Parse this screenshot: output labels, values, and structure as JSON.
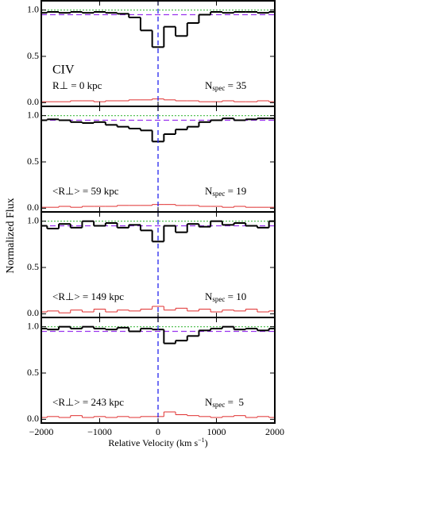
{
  "chart_data": [
    {
      "type": "step",
      "annotation": "CIV",
      "rlabel": "R⊥ = 0 kpc",
      "nlabel": {
        "main": "N",
        "sub": "spec",
        "rest": " = 35"
      },
      "ylabel": "Normalized Flux",
      "x": [
        -2000,
        -1800,
        -1600,
        -1400,
        -1200,
        -1000,
        -800,
        -600,
        -400,
        -200,
        0,
        200,
        400,
        600,
        800,
        1000,
        1200,
        1400,
        1600,
        1800,
        2000
      ],
      "series": [
        {
          "color": "#000000",
          "values": [
            0.97,
            0.98,
            0.97,
            0.98,
            0.97,
            0.98,
            0.97,
            0.96,
            0.92,
            0.78,
            0.6,
            0.82,
            0.72,
            0.86,
            0.95,
            0.98,
            0.97,
            0.98,
            0.98,
            0.97,
            0.98
          ]
        },
        {
          "color": "#e03030",
          "values": [
            0.01,
            0.01,
            0.01,
            0.02,
            0.02,
            0.01,
            0.02,
            0.02,
            0.03,
            0.03,
            0.04,
            0.03,
            0.02,
            0.02,
            0.01,
            0.01,
            0.02,
            0.01,
            0.01,
            0.02,
            0.01
          ]
        }
      ],
      "reference_lines": [
        {
          "y": 1.0,
          "color": "#44bb44",
          "style": "dotted"
        },
        {
          "y": 0.95,
          "color": "#9933ee",
          "style": "dashed"
        }
      ],
      "vline": {
        "x": 0,
        "color": "#2222ee"
      },
      "xlim": [
        -2000,
        2000
      ],
      "ylim": [
        -0.04,
        1.1
      ],
      "yticks": [
        {
          "value": 0,
          "label": "0.0"
        },
        {
          "value": 0.5,
          "label": "0.5"
        },
        {
          "value": 1,
          "label": "1.0"
        }
      ]
    },
    {
      "type": "step",
      "rlabel": "<R⊥> = 59 kpc",
      "nlabel": {
        "main": "N",
        "sub": "spec",
        "rest": " = 19"
      },
      "x": [
        -2000,
        -1800,
        -1600,
        -1400,
        -1200,
        -1000,
        -800,
        -600,
        -400,
        -200,
        0,
        200,
        400,
        600,
        800,
        1000,
        1200,
        1400,
        1600,
        1800,
        2000
      ],
      "series": [
        {
          "color": "#000000",
          "values": [
            0.95,
            0.96,
            0.95,
            0.93,
            0.92,
            0.93,
            0.9,
            0.88,
            0.86,
            0.84,
            0.72,
            0.8,
            0.85,
            0.88,
            0.93,
            0.95,
            0.97,
            0.95,
            0.96,
            0.97,
            0.97
          ]
        },
        {
          "color": "#e03030",
          "values": [
            0.01,
            0.01,
            0.02,
            0.01,
            0.02,
            0.02,
            0.02,
            0.03,
            0.03,
            0.03,
            0.04,
            0.04,
            0.03,
            0.03,
            0.02,
            0.02,
            0.01,
            0.02,
            0.01,
            0.01,
            0.01
          ]
        }
      ],
      "reference_lines": [
        {
          "y": 1.0,
          "color": "#44bb44",
          "style": "dotted"
        },
        {
          "y": 0.95,
          "color": "#9933ee",
          "style": "dashed"
        }
      ],
      "vline": {
        "x": 0,
        "color": "#2222ee"
      },
      "xlim": [
        -2000,
        2000
      ],
      "ylim": [
        -0.04,
        1.1
      ],
      "yticks": [
        {
          "value": 0,
          "label": "0.0"
        },
        {
          "value": 0.5,
          "label": "0.5"
        },
        {
          "value": 1,
          "label": "1.0"
        }
      ]
    },
    {
      "type": "step",
      "rlabel": "<R⊥> = 149 kpc",
      "nlabel": {
        "main": "N",
        "sub": "spec",
        "rest": " = 10"
      },
      "x": [
        -2000,
        -1800,
        -1600,
        -1400,
        -1200,
        -1000,
        -800,
        -600,
        -400,
        -200,
        0,
        200,
        400,
        600,
        800,
        1000,
        1200,
        1400,
        1600,
        1800,
        2000
      ],
      "series": [
        {
          "color": "#000000",
          "values": [
            0.95,
            0.92,
            0.97,
            0.93,
            1.0,
            0.95,
            0.98,
            0.93,
            0.96,
            0.9,
            0.78,
            0.95,
            0.88,
            0.97,
            0.94,
            1.0,
            0.96,
            0.98,
            0.95,
            0.93,
            1.0
          ]
        },
        {
          "color": "#e03030",
          "values": [
            0.02,
            0.03,
            0.01,
            0.04,
            0.02,
            0.05,
            0.02,
            0.04,
            0.03,
            0.05,
            0.08,
            0.04,
            0.06,
            0.03,
            0.05,
            0.02,
            0.04,
            0.03,
            0.05,
            0.02,
            0.03
          ]
        }
      ],
      "reference_lines": [
        {
          "y": 1.0,
          "color": "#44bb44",
          "style": "dotted"
        },
        {
          "y": 0.95,
          "color": "#9933ee",
          "style": "dashed"
        }
      ],
      "vline": {
        "x": 0,
        "color": "#2222ee"
      },
      "xlim": [
        -2000,
        2000
      ],
      "ylim": [
        -0.04,
        1.1
      ],
      "yticks": [
        {
          "value": 0,
          "label": "0.0"
        },
        {
          "value": 0.5,
          "label": "0.5"
        },
        {
          "value": 1,
          "label": "1.0"
        }
      ]
    },
    {
      "type": "step",
      "rlabel": "<R⊥> = 243 kpc",
      "nlabel": {
        "main": "N",
        "sub": "spec",
        "rest": " =  5"
      },
      "xlabel": {
        "text": "Relative Velocity (km s",
        "sup": "−1",
        "end": ")"
      },
      "x": [
        -2000,
        -1800,
        -1600,
        -1400,
        -1200,
        -1000,
        -800,
        -600,
        -400,
        -200,
        0,
        200,
        400,
        600,
        800,
        1000,
        1200,
        1400,
        1600,
        1800,
        2000
      ],
      "series": [
        {
          "color": "#000000",
          "values": [
            0.98,
            0.97,
            1.0,
            0.98,
            1.0,
            0.98,
            0.97,
            0.99,
            0.95,
            0.98,
            0.97,
            0.82,
            0.85,
            0.9,
            0.96,
            0.98,
            1.0,
            0.97,
            0.98,
            0.96,
            0.98
          ]
        },
        {
          "color": "#e03030",
          "values": [
            0.02,
            0.03,
            0.02,
            0.04,
            0.02,
            0.03,
            0.02,
            0.03,
            0.02,
            0.03,
            0.03,
            0.08,
            0.05,
            0.04,
            0.03,
            0.02,
            0.03,
            0.04,
            0.02,
            0.03,
            0.02
          ]
        }
      ],
      "reference_lines": [
        {
          "y": 1.0,
          "color": "#44bb44",
          "style": "dotted"
        },
        {
          "y": 0.95,
          "color": "#9933ee",
          "style": "dashed"
        }
      ],
      "vline": {
        "x": 0,
        "color": "#2222ee"
      },
      "xlim": [
        -2000,
        2000
      ],
      "ylim": [
        -0.04,
        1.1
      ],
      "xticks": [
        {
          "value": -2000,
          "label": "−2000"
        },
        {
          "value": -1000,
          "label": "−1000"
        },
        0,
        1000,
        2000
      ],
      "yticks": [
        {
          "value": 0,
          "label": "0.0"
        },
        {
          "value": 0.5,
          "label": "0.5"
        },
        {
          "value": 1,
          "label": "1.0"
        }
      ]
    }
  ]
}
